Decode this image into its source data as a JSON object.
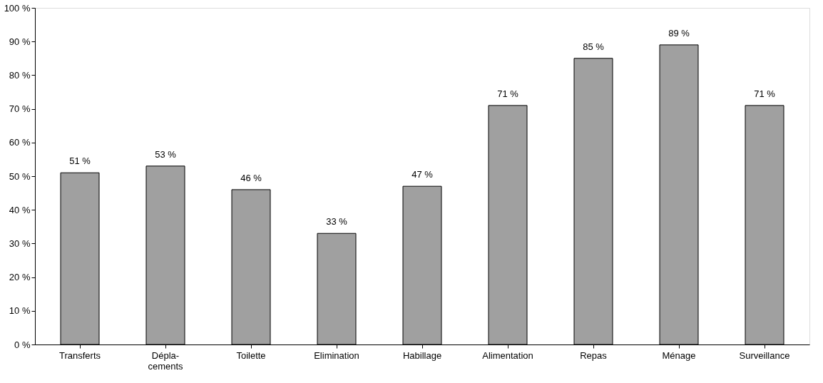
{
  "chart_data": {
    "type": "bar",
    "categories": [
      "Transferts",
      "Dépla-\ncements",
      "Toilette",
      "Elimination",
      "Habillage",
      "Alimentation",
      "Repas",
      "Ménage",
      "Surveillance"
    ],
    "values": [
      51,
      53,
      46,
      33,
      47,
      71,
      85,
      89,
      71
    ],
    "value_labels": [
      "51 %",
      "53 %",
      "46 %",
      "33 %",
      "47 %",
      "71 %",
      "85 %",
      "89 %",
      "71 %"
    ],
    "color": "#a0a0a0",
    "ylim": [
      0,
      100
    ],
    "yticks": [
      {
        "value": 0,
        "label": "0 %"
      },
      {
        "value": 10,
        "label": "10 %"
      },
      {
        "value": 20,
        "label": "20 %"
      },
      {
        "value": 30,
        "label": "30 %"
      },
      {
        "value": 40,
        "label": "40 %"
      },
      {
        "value": 50,
        "label": "50 %"
      },
      {
        "value": 60,
        "label": "60 %"
      },
      {
        "value": 70,
        "label": "70 %"
      },
      {
        "value": 80,
        "label": "80 %"
      },
      {
        "value": 90,
        "label": "90 %"
      },
      {
        "value": 100,
        "label": "100 %"
      }
    ],
    "grid": false
  }
}
